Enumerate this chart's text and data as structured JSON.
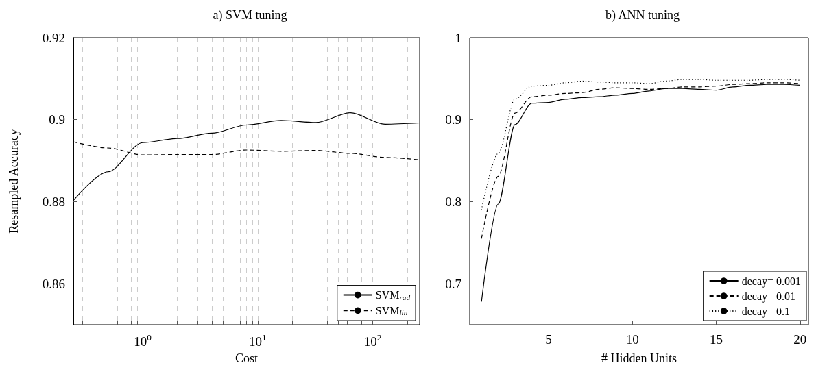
{
  "chart_data": [
    {
      "type": "line",
      "title": "a) SVM tuning",
      "xlabel": "Cost",
      "ylabel": "Resampled Accuracy",
      "log": "x",
      "x": [
        0.25,
        0.5,
        1,
        2,
        4,
        8,
        16,
        32,
        64,
        128,
        256
      ],
      "series": [
        {
          "name": "SVM$_{rad}$",
          "color": "#000000",
          "line_style": "solid",
          "values": [
            0.8803,
            0.8873,
            0.8944,
            0.8954,
            0.8967,
            0.8987,
            0.8998,
            0.8993,
            0.9017,
            0.8989,
            0.8992
          ]
        },
        {
          "name": "SVM$_{lin}$",
          "color": "#000000",
          "line_style": "dashed",
          "values": [
            0.8946,
            0.8931,
            0.8914,
            0.8915,
            0.8915,
            0.8926,
            0.8923,
            0.8925,
            0.8918,
            0.8908,
            0.8902
          ]
        }
      ],
      "xlim": [
        0.25,
        256
      ],
      "xticks": [
        {
          "value": 0.3,
          "label": null
        },
        {
          "value": 0.4,
          "label": null
        },
        {
          "value": 0.5,
          "label": null
        },
        {
          "value": 0.6,
          "label": null
        },
        {
          "value": 0.7,
          "label": null
        },
        {
          "value": 0.8,
          "label": null
        },
        {
          "value": 0.9,
          "label": null
        },
        {
          "value": 1,
          "label": "10$^{0}$"
        },
        {
          "value": 2,
          "label": null
        },
        {
          "value": 3,
          "label": null
        },
        {
          "value": 4,
          "label": null
        },
        {
          "value": 5,
          "label": null
        },
        {
          "value": 6,
          "label": null
        },
        {
          "value": 7,
          "label": null
        },
        {
          "value": 8,
          "label": null
        },
        {
          "value": 9,
          "label": null
        },
        {
          "value": 10,
          "label": "10$^{1}$"
        },
        {
          "value": 20,
          "label": null
        },
        {
          "value": 30,
          "label": null
        },
        {
          "value": 40,
          "label": null
        },
        {
          "value": 50,
          "label": null
        },
        {
          "value": 60,
          "label": null
        },
        {
          "value": 70,
          "label": null
        },
        {
          "value": 80,
          "label": null
        },
        {
          "value": 90,
          "label": null
        },
        {
          "value": 100,
          "label": "10$^{2}$"
        },
        {
          "value": 200,
          "label": null
        }
      ],
      "ylim": [
        0.85,
        0.92
      ],
      "yticks": [
        0.86,
        0.88,
        0.9,
        0.92
      ],
      "grid": "x",
      "legend": "bottom right",
      "marker": "none"
    },
    {
      "type": "line",
      "title": "b) ANN tuning",
      "xlabel": "# Hidden Units",
      "x": [
        1,
        2,
        3,
        4,
        5,
        6,
        7,
        8,
        9,
        10,
        11,
        12,
        13,
        14,
        15,
        16,
        17,
        18,
        19,
        20
      ],
      "series": [
        {
          "name": "decay= 0.001",
          "color": "#000000",
          "line_style": "solid",
          "values": [
            0.678,
            0.797,
            0.894,
            0.92,
            0.921,
            0.925,
            0.927,
            0.928,
            0.93,
            0.932,
            0.935,
            0.938,
            0.938,
            0.937,
            0.936,
            0.94,
            0.942,
            0.943,
            0.943,
            0.942
          ]
        },
        {
          "name": "decay= 0.01",
          "color": "#000000",
          "line_style": "dashed",
          "values": [
            0.755,
            0.831,
            0.908,
            0.928,
            0.93,
            0.932,
            0.933,
            0.937,
            0.939,
            0.938,
            0.937,
            0.938,
            0.94,
            0.94,
            0.941,
            0.943,
            0.944,
            0.945,
            0.945,
            0.944
          ]
        },
        {
          "name": "decay= 0.1",
          "color": "#000000",
          "line_style": "dotted",
          "values": [
            0.79,
            0.859,
            0.925,
            0.941,
            0.942,
            0.945,
            0.947,
            0.946,
            0.945,
            0.945,
            0.944,
            0.947,
            0.949,
            0.949,
            0.948,
            0.948,
            0.948,
            0.949,
            0.949,
            0.948
          ]
        }
      ],
      "xlim": [
        0.3,
        20.5
      ],
      "xticks": [
        5,
        10,
        15,
        20
      ],
      "ylim": [
        0.65,
        1
      ],
      "yticks": [
        0.7,
        0.8,
        0.9,
        1
      ],
      "grid": false,
      "legend": "bottom right",
      "marker": "none"
    }
  ]
}
